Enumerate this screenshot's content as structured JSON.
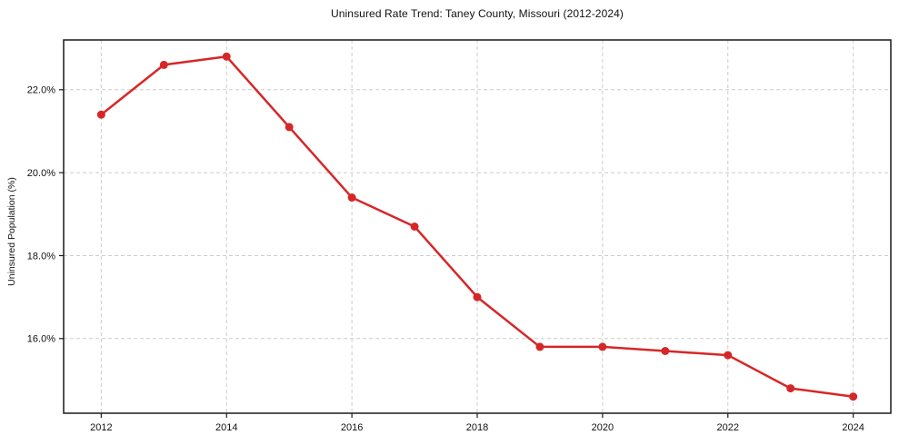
{
  "chart_data": {
    "type": "line",
    "title": "Uninsured Rate Trend: Taney County, Missouri (2012-2024)",
    "xlabel": "",
    "ylabel": "Uninsured Population (%)",
    "x": [
      2012,
      2013,
      2014,
      2015,
      2016,
      2017,
      2018,
      2019,
      2020,
      2021,
      2022,
      2023,
      2024
    ],
    "values": [
      21.4,
      22.6,
      22.8,
      21.1,
      19.4,
      18.7,
      17.0,
      15.8,
      15.8,
      15.7,
      15.6,
      14.8,
      14.6
    ],
    "xlim": [
      2011.4,
      2024.6
    ],
    "ylim": [
      14.2,
      23.2
    ],
    "xticks": [
      2012,
      2014,
      2016,
      2018,
      2020,
      2022,
      2024
    ],
    "xtick_labels": [
      "2012",
      "2014",
      "2016",
      "2018",
      "2020",
      "2022",
      "2024"
    ],
    "yticks": [
      16,
      18,
      20,
      22
    ],
    "ytick_labels": [
      "16.0%",
      "18.0%",
      "20.0%",
      "22.0%"
    ],
    "grid": true,
    "legend": false,
    "line_color": "#d62728",
    "marker_color": "#d62728",
    "grid_color": "#cccccc",
    "axis_color": "#1a1a1a",
    "tick_label_color": "#111111"
  }
}
